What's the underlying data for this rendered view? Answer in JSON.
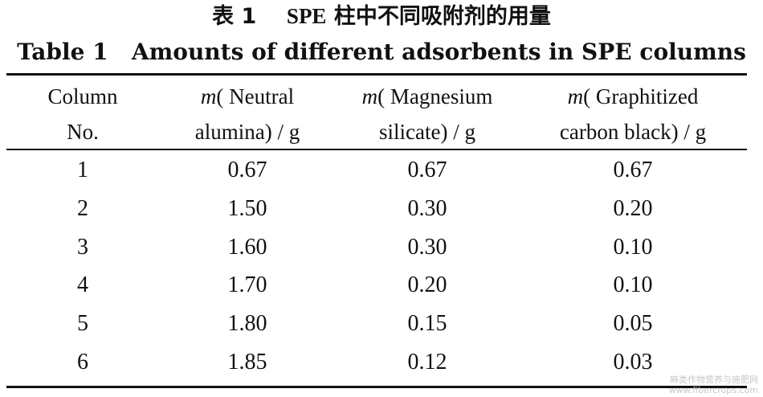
{
  "caption": {
    "cn_prefix": "表 1",
    "cn_latin": "SPE",
    "cn_rest": "柱中不同吸附剂的用量",
    "en": "Table 1   Amounts of different adsorbents in SPE columns"
  },
  "table": {
    "headers": [
      {
        "lines": [
          "Column",
          "No."
        ]
      },
      {
        "italic": "m",
        "lines": [
          "( Neutral",
          "alumina) / g"
        ]
      },
      {
        "italic": "m",
        "lines": [
          "( Magnesium",
          "silicate) / g"
        ]
      },
      {
        "italic": "m",
        "lines": [
          "( Graphitized",
          "carbon black) / g"
        ]
      }
    ],
    "rows": [
      [
        "1",
        "0.67",
        "0.67",
        "0.67"
      ],
      [
        "2",
        "1.50",
        "0.30",
        "0.20"
      ],
      [
        "3",
        "1.60",
        "0.30",
        "0.10"
      ],
      [
        "4",
        "1.70",
        "0.20",
        "0.10"
      ],
      [
        "5",
        "1.80",
        "0.15",
        "0.05"
      ],
      [
        "6",
        "1.85",
        "0.12",
        "0.03"
      ]
    ]
  },
  "watermark": {
    "line1": "麻类作物营养与施肥网",
    "line2": "www.fibercrops.com"
  }
}
